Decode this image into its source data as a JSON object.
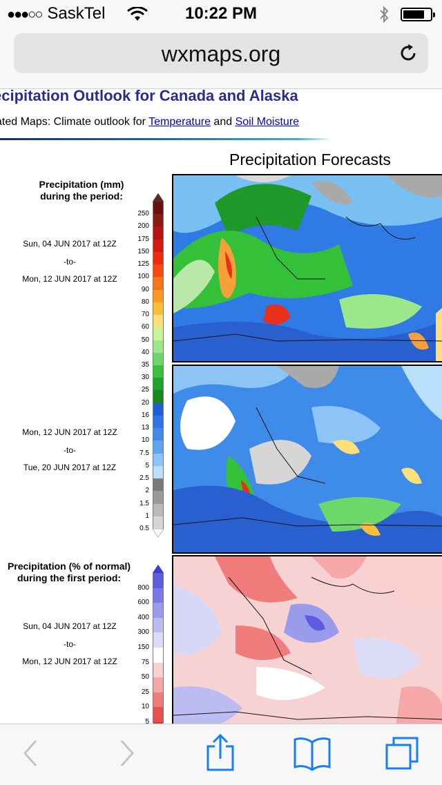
{
  "status_bar": {
    "signal": "●●●○○",
    "carrier": "SaskTel",
    "time": "10:22 PM"
  },
  "browser": {
    "url": "wxmaps.org"
  },
  "page": {
    "title": "ecipitation Outlook for Canada and Alaska",
    "related_prefix": "ated Maps: Climate outlook for ",
    "related_link_temperature": "Temperature",
    "related_mid": " and ",
    "related_link_soil": "Soil Moisture",
    "forecast_heading": "Precipitation Forecasts"
  },
  "legend_mm": {
    "title_line1": "Precipitation (mm)",
    "title_line2": "during the period:",
    "ticks": [
      "250",
      "200",
      "175",
      "150",
      "125",
      "100",
      "90",
      "80",
      "70",
      "60",
      "50",
      "40",
      "35",
      "30",
      "25",
      "20",
      "16",
      "13",
      "10",
      "7.5",
      "5",
      "2.5",
      "2",
      "1.5",
      "1",
      "0.5"
    ],
    "colors": [
      "#6b1210",
      "#8b1a16",
      "#b2160f",
      "#d41a10",
      "#ee2a10",
      "#f64a12",
      "#f8731a",
      "#fb9a20",
      "#fdbf3a",
      "#fde07a",
      "#c9f29a",
      "#9ae88a",
      "#6cd86a",
      "#3cc13c",
      "#20a32a",
      "#15891e",
      "#1e5fd6",
      "#2e74e2",
      "#3f8be9",
      "#60a4ef",
      "#8cc4f5",
      "#b8e0fa",
      "#7a7a7a",
      "#9a9a9a",
      "#b9b9b9",
      "#d6d6d6"
    ],
    "period1": {
      "start": "Sun, 04 JUN 2017 at 12Z",
      "sep": "-to-",
      "end": "Mon, 12 JUN 2017 at 12Z"
    },
    "period2": {
      "start": "Mon, 12 JUN 2017 at 12Z",
      "sep": "-to-",
      "end": "Tue, 20 JUN 2017 at 12Z"
    }
  },
  "legend_pct": {
    "title_line1": "Precipitation (% of normal)",
    "title_line2": "during the first period:",
    "ticks": [
      "800",
      "600",
      "400",
      "300",
      "150",
      "75",
      "50",
      "25",
      "10",
      "5"
    ],
    "colors": [
      "#5c5ce0",
      "#7a7ae6",
      "#9b9bec",
      "#bcbcf2",
      "#dcdcf8",
      "#ffffff",
      "#fbd0d0",
      "#f6a8a8",
      "#f07c7c",
      "#e84f4f"
    ],
    "period": {
      "start": "Sun, 04 JUN 2017 at 12Z",
      "sep": "-to-",
      "end": "Mon, 12 JUN 2017 at 12Z"
    }
  },
  "maps": [
    {
      "name": "precip-map-period-1"
    },
    {
      "name": "precip-map-period-2"
    },
    {
      "name": "precip-percent-normal-map"
    }
  ],
  "toolbar": {
    "icons": [
      "back-icon",
      "forward-icon",
      "share-icon",
      "bookmarks-icon",
      "tabs-icon"
    ],
    "accent": "#157efb"
  }
}
